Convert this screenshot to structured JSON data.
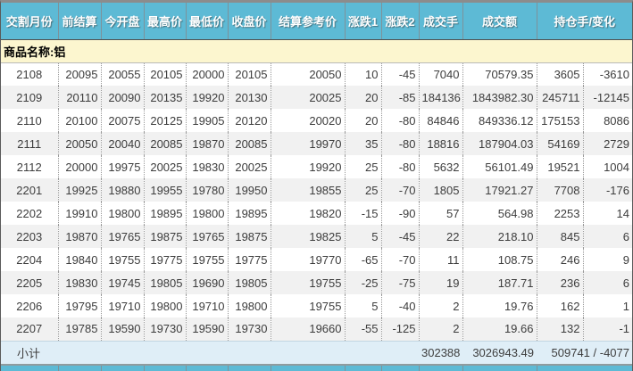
{
  "table": {
    "headers": [
      "交割月份",
      "前结算",
      "今开盘",
      "最高价",
      "最低价",
      "收盘价",
      "结算参考价",
      "涨跌1",
      "涨跌2",
      "成交手",
      "成交额",
      "持仓手/变化"
    ],
    "product_label": "商品名称:铝",
    "rows": [
      [
        "2108",
        "20095",
        "20055",
        "20105",
        "20000",
        "20105",
        "20050",
        "10",
        "-45",
        "7040",
        "70579.35",
        "3605",
        "-3610"
      ],
      [
        "2109",
        "20110",
        "20090",
        "20135",
        "19920",
        "20130",
        "20025",
        "20",
        "-85",
        "184136",
        "1843982.30",
        "245711",
        "-12145"
      ],
      [
        "2110",
        "20100",
        "20075",
        "20125",
        "19905",
        "20120",
        "20020",
        "20",
        "-80",
        "84846",
        "849336.12",
        "175153",
        "8086"
      ],
      [
        "2111",
        "20050",
        "20040",
        "20085",
        "19870",
        "20085",
        "19970",
        "35",
        "-80",
        "18816",
        "187904.03",
        "54169",
        "2729"
      ],
      [
        "2112",
        "20000",
        "19975",
        "20025",
        "19830",
        "20025",
        "19920",
        "25",
        "-80",
        "5632",
        "56101.49",
        "19521",
        "1004"
      ],
      [
        "2201",
        "19925",
        "19880",
        "19955",
        "19780",
        "19950",
        "19855",
        "25",
        "-70",
        "1805",
        "17921.27",
        "7708",
        "-176"
      ],
      [
        "2202",
        "19910",
        "19800",
        "19895",
        "19800",
        "19895",
        "19820",
        "-15",
        "-90",
        "57",
        "564.98",
        "2253",
        "14"
      ],
      [
        "2203",
        "19870",
        "19765",
        "19875",
        "19765",
        "19875",
        "19825",
        "5",
        "-45",
        "22",
        "218.10",
        "845",
        "6"
      ],
      [
        "2204",
        "19840",
        "19755",
        "19775",
        "19755",
        "19775",
        "19770",
        "-65",
        "-70",
        "11",
        "108.75",
        "246",
        "9"
      ],
      [
        "2205",
        "19830",
        "19745",
        "19805",
        "19690",
        "19805",
        "19755",
        "-25",
        "-75",
        "19",
        "187.71",
        "236",
        "6"
      ],
      [
        "2206",
        "19795",
        "19710",
        "19800",
        "19710",
        "19800",
        "19755",
        "5",
        "-40",
        "2",
        "19.76",
        "162",
        "1"
      ],
      [
        "2207",
        "19785",
        "19590",
        "19730",
        "19590",
        "19730",
        "19660",
        "-55",
        "-125",
        "2",
        "19.66",
        "132",
        "-1"
      ]
    ],
    "subtotal": {
      "label": "小计",
      "volume": "302388",
      "turnover": "3026943.49",
      "open_interest_change": "509741 / -4077"
    }
  },
  "colors": {
    "header_bg": "#5dbad5",
    "product_row_bg": "#fcf6cf",
    "alt_row_bg": "#f1f1f1",
    "subtotal_bg": "#dfeef7",
    "header_sep": "#7d929b",
    "data_text": "#3d3d3d"
  }
}
